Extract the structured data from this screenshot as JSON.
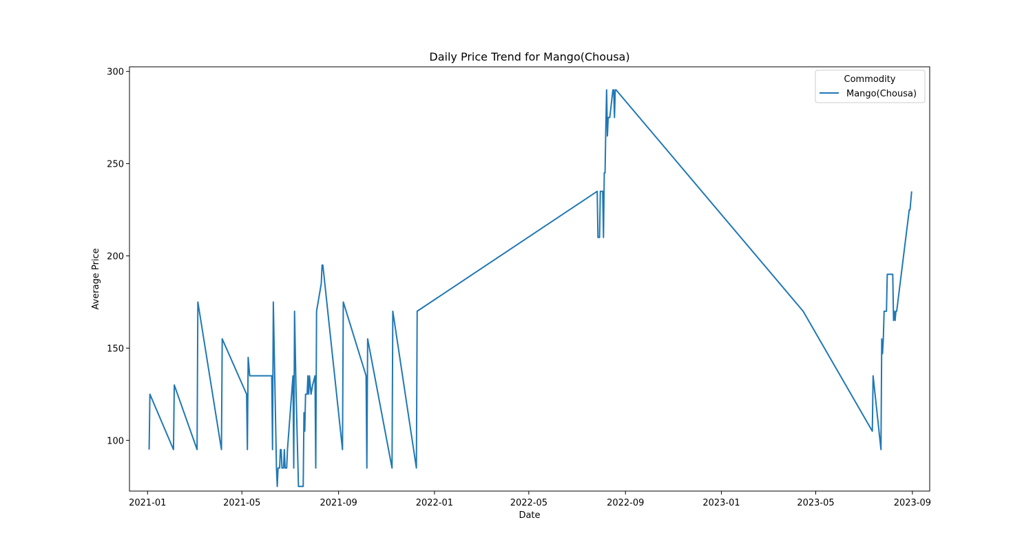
{
  "chart_data": {
    "type": "line",
    "title": "Daily Price Trend for Mango(Chousa)",
    "xlabel": "Date",
    "ylabel": "Average Price",
    "x_axis_type": "date",
    "xlim": [
      "2020-12-09",
      "2023-09-23"
    ],
    "ylim": [
      72.5,
      302.5
    ],
    "x_ticks": [
      {
        "value": "2021-01-01",
        "label": "2021-01"
      },
      {
        "value": "2021-05-01",
        "label": "2021-05"
      },
      {
        "value": "2021-09-01",
        "label": "2021-09"
      },
      {
        "value": "2022-01-01",
        "label": "2022-01"
      },
      {
        "value": "2022-05-01",
        "label": "2022-05"
      },
      {
        "value": "2022-09-01",
        "label": "2022-09"
      },
      {
        "value": "2023-01-01",
        "label": "2023-01"
      },
      {
        "value": "2023-05-01",
        "label": "2023-05"
      },
      {
        "value": "2023-09-01",
        "label": "2023-09"
      }
    ],
    "y_ticks": [
      100,
      150,
      200,
      250,
      300
    ],
    "grid": false,
    "legend": {
      "title": "Commodity",
      "position": "top-right"
    },
    "series": [
      {
        "name": "Mango(Chousa)",
        "color": "#1f77b4",
        "points": [
          [
            "2021-01-03",
            95
          ],
          [
            "2021-01-04",
            125
          ],
          [
            "2021-02-03",
            95
          ],
          [
            "2021-02-04",
            130
          ],
          [
            "2021-03-05",
            95
          ],
          [
            "2021-03-06",
            175
          ],
          [
            "2021-04-05",
            95
          ],
          [
            "2021-04-06",
            155
          ],
          [
            "2021-05-07",
            125
          ],
          [
            "2021-05-08",
            95
          ],
          [
            "2021-05-09",
            145
          ],
          [
            "2021-05-11",
            135
          ],
          [
            "2021-06-08",
            135
          ],
          [
            "2021-06-09",
            95
          ],
          [
            "2021-06-10",
            175
          ],
          [
            "2021-06-14",
            85
          ],
          [
            "2021-06-15",
            75
          ],
          [
            "2021-06-16",
            85
          ],
          [
            "2021-06-18",
            85
          ],
          [
            "2021-06-19",
            95
          ],
          [
            "2021-06-20",
            95
          ],
          [
            "2021-06-21",
            85
          ],
          [
            "2021-06-23",
            85
          ],
          [
            "2021-06-24",
            95
          ],
          [
            "2021-06-25",
            85
          ],
          [
            "2021-06-27",
            85
          ],
          [
            "2021-06-28",
            95
          ],
          [
            "2021-07-05",
            135
          ],
          [
            "2021-07-06",
            85
          ],
          [
            "2021-07-07",
            170
          ],
          [
            "2021-07-09",
            125
          ],
          [
            "2021-07-12",
            75
          ],
          [
            "2021-07-18",
            75
          ],
          [
            "2021-07-19",
            115
          ],
          [
            "2021-07-20",
            105
          ],
          [
            "2021-07-21",
            125
          ],
          [
            "2021-07-23",
            125
          ],
          [
            "2021-07-24",
            135
          ],
          [
            "2021-07-25",
            125
          ],
          [
            "2021-07-26",
            135
          ],
          [
            "2021-07-28",
            125
          ],
          [
            "2021-07-30",
            130
          ],
          [
            "2021-08-02",
            135
          ],
          [
            "2021-08-03",
            85
          ],
          [
            "2021-08-04",
            170
          ],
          [
            "2021-08-10",
            185
          ],
          [
            "2021-08-11",
            195
          ],
          [
            "2021-08-12",
            195
          ],
          [
            "2021-09-06",
            95
          ],
          [
            "2021-09-07",
            175
          ],
          [
            "2021-10-06",
            135
          ],
          [
            "2021-10-07",
            85
          ],
          [
            "2021-10-08",
            155
          ],
          [
            "2021-11-08",
            85
          ],
          [
            "2021-11-09",
            170
          ],
          [
            "2021-12-09",
            85
          ],
          [
            "2021-12-10",
            170
          ],
          [
            "2022-07-27",
            235
          ],
          [
            "2022-07-28",
            210
          ],
          [
            "2022-07-30",
            210
          ],
          [
            "2022-07-31",
            235
          ],
          [
            "2022-08-03",
            235
          ],
          [
            "2022-08-04",
            210
          ],
          [
            "2022-08-05",
            245
          ],
          [
            "2022-08-06",
            245
          ],
          [
            "2022-08-07",
            270
          ],
          [
            "2022-08-08",
            290
          ],
          [
            "2022-08-09",
            265
          ],
          [
            "2022-08-10",
            275
          ],
          [
            "2022-08-12",
            275
          ],
          [
            "2022-08-16",
            290
          ],
          [
            "2022-08-17",
            290
          ],
          [
            "2022-08-18",
            275
          ],
          [
            "2022-08-19",
            290
          ],
          [
            "2022-08-20",
            290
          ],
          [
            "2023-04-15",
            170
          ],
          [
            "2023-07-12",
            105
          ],
          [
            "2023-07-13",
            135
          ],
          [
            "2023-07-23",
            95
          ],
          [
            "2023-07-24",
            155
          ],
          [
            "2023-07-25",
            147
          ],
          [
            "2023-07-26",
            155
          ],
          [
            "2023-07-27",
            170
          ],
          [
            "2023-07-30",
            170
          ],
          [
            "2023-07-31",
            190
          ],
          [
            "2023-08-07",
            190
          ],
          [
            "2023-08-08",
            165
          ],
          [
            "2023-08-09",
            170
          ],
          [
            "2023-08-10",
            165
          ],
          [
            "2023-08-11",
            170
          ],
          [
            "2023-08-12",
            170
          ],
          [
            "2023-08-28",
            225
          ],
          [
            "2023-08-29",
            225
          ],
          [
            "2023-08-31",
            235
          ]
        ]
      }
    ]
  }
}
